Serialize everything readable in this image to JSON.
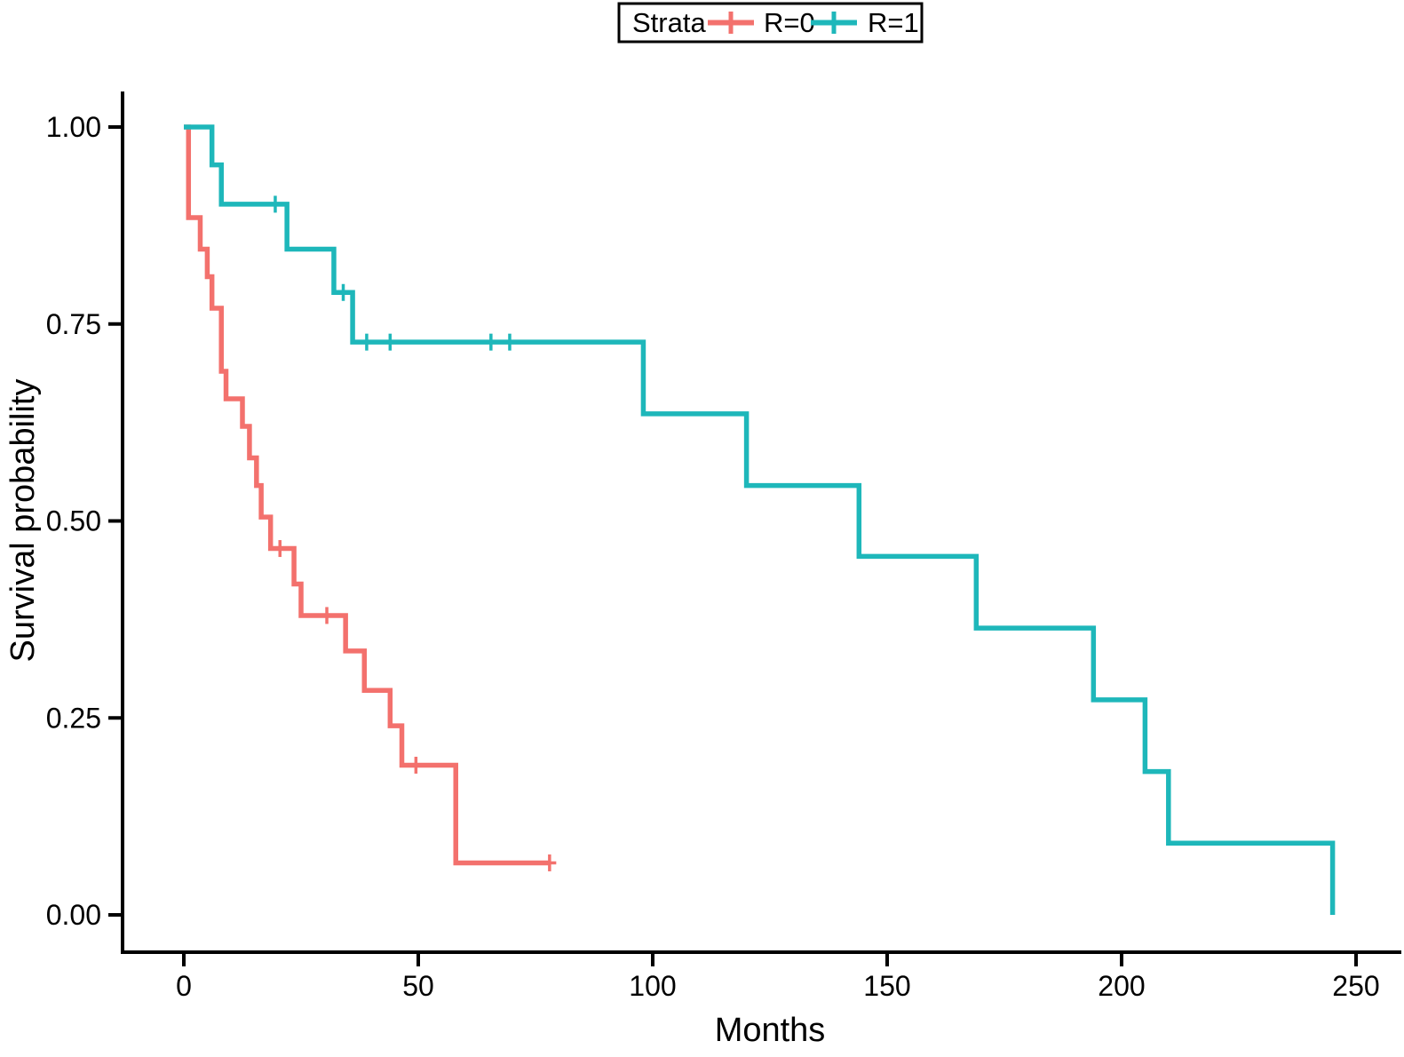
{
  "chart_data": {
    "type": "line",
    "subtype": "kaplan-meier-step",
    "title": "",
    "xlabel": "Months",
    "ylabel": "Survival probability",
    "xlim": [
      0,
      250
    ],
    "ylim": [
      0.0,
      1.0
    ],
    "x_tick_values": [
      0,
      50,
      100,
      150,
      200,
      250
    ],
    "x_tick_labels": [
      "0",
      "50",
      "100",
      "150",
      "200",
      "250"
    ],
    "y_tick_values": [
      1.0,
      0.75,
      0.5,
      0.25,
      0.0
    ],
    "y_tick_labels": [
      "1.00",
      "0.75",
      "0.50",
      "0.25",
      "0.00"
    ],
    "grid": false,
    "axis_color": "#000000",
    "text_color": "#000000",
    "legend": {
      "title": "Strata",
      "position": "top-center"
    },
    "series": [
      {
        "name": "R=0",
        "color": "#f3716d",
        "steps": [
          [
            0,
            1.0
          ],
          [
            1,
            0.885
          ],
          [
            3.5,
            0.845
          ],
          [
            5,
            0.81
          ],
          [
            6,
            0.77
          ],
          [
            8,
            0.69
          ],
          [
            9,
            0.655
          ],
          [
            12.5,
            0.62
          ],
          [
            14,
            0.58
          ],
          [
            15.5,
            0.545
          ],
          [
            16.5,
            0.505
          ],
          [
            18.5,
            0.465
          ],
          [
            23.5,
            0.42
          ],
          [
            25,
            0.38
          ],
          [
            34.5,
            0.335
          ],
          [
            38.5,
            0.285
          ],
          [
            44,
            0.24
          ],
          [
            46.5,
            0.19
          ],
          [
            58,
            0.066
          ]
        ],
        "end_time": 78,
        "censors": [
          [
            20.5,
            0.465
          ],
          [
            30.5,
            0.38
          ],
          [
            49.5,
            0.19
          ],
          [
            78,
            0.066
          ]
        ]
      },
      {
        "name": "R=1",
        "color": "#1eb7ba",
        "steps": [
          [
            0,
            1.0
          ],
          [
            6,
            0.952
          ],
          [
            8,
            0.902
          ],
          [
            22,
            0.845
          ],
          [
            32,
            0.79
          ],
          [
            36,
            0.727
          ],
          [
            98,
            0.636
          ],
          [
            120,
            0.545
          ],
          [
            144,
            0.455
          ],
          [
            169,
            0.364
          ],
          [
            194,
            0.273
          ],
          [
            205,
            0.182
          ],
          [
            210,
            0.091
          ],
          [
            245,
            0.0
          ]
        ],
        "end_time": 245,
        "censors": [
          [
            19.5,
            0.902
          ],
          [
            34,
            0.79
          ],
          [
            39,
            0.727
          ],
          [
            44,
            0.727
          ],
          [
            65.5,
            0.727
          ],
          [
            69.5,
            0.727
          ]
        ]
      }
    ]
  }
}
